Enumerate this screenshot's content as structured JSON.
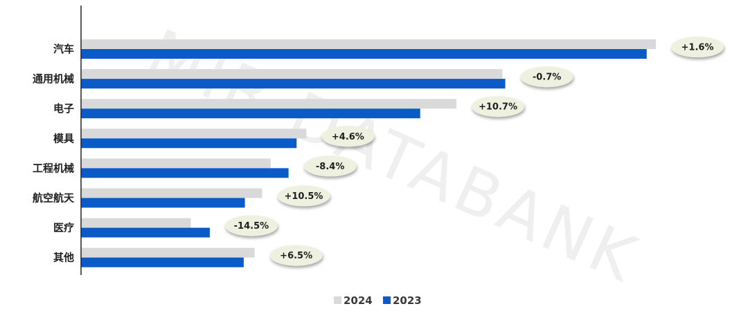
{
  "chart_data": {
    "type": "bar",
    "orientation": "horizontal",
    "categories": [
      "汽车",
      "通用机械",
      "电子",
      "模具",
      "工程机械",
      "航空航天",
      "医疗",
      "其他"
    ],
    "series": [
      {
        "name": "2024",
        "color": "#d9d9d9",
        "values": [
          100,
          73.3,
          65.3,
          39.2,
          33.0,
          31.5,
          19.1,
          30.2
        ]
      },
      {
        "name": "2023",
        "color": "#0a5bc7",
        "values": [
          98.4,
          73.8,
          59.0,
          37.5,
          36.1,
          28.5,
          22.4,
          28.3
        ]
      }
    ],
    "annotations": [
      "+1.6%",
      "-0.7%",
      "+10.7%",
      "+4.6%",
      "-8.4%",
      "+10.5%",
      "-14.5%",
      "+6.5%"
    ],
    "annotation_color": "#eef0e0",
    "xlim": [
      0,
      100
    ],
    "legend_position": "bottom",
    "grid": false,
    "watermark": "MIR DATABANK"
  }
}
